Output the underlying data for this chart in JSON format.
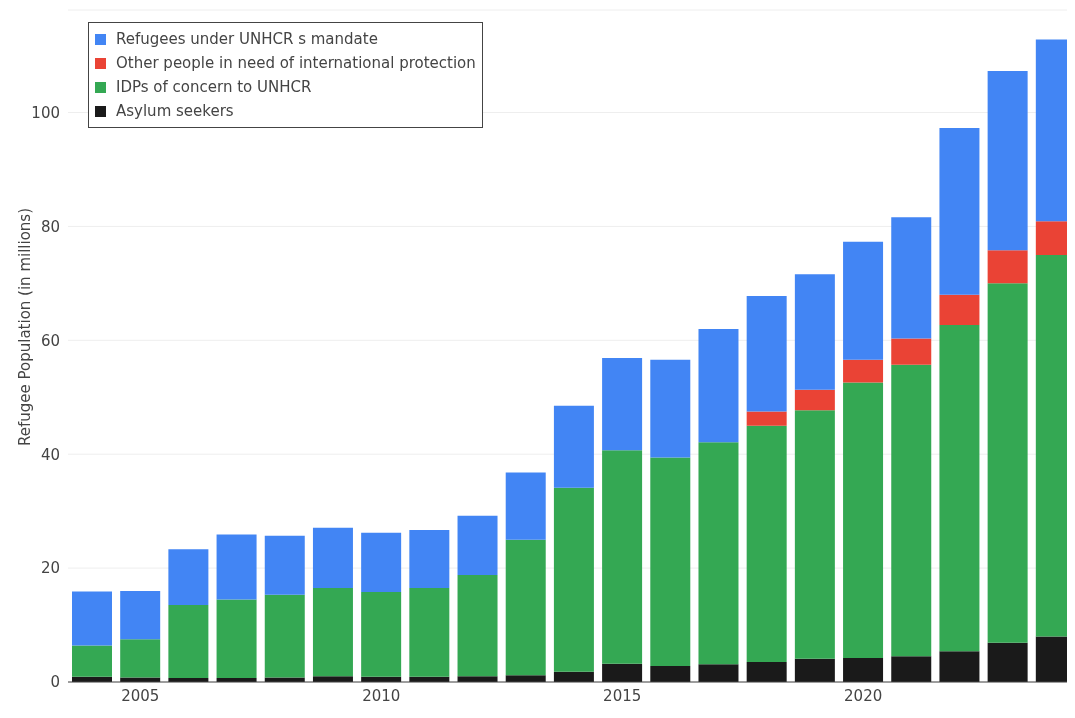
{
  "chart_data": {
    "type": "bar",
    "ylabel": "Refugee Population (in millions)",
    "stacked": true,
    "grid": "y",
    "legend": "top left",
    "x": [
      2004,
      2005,
      2006,
      2007,
      2008,
      2009,
      2010,
      2011,
      2012,
      2013,
      2014,
      2015,
      2016,
      2017,
      2018,
      2019,
      2020,
      2021,
      2022,
      2023,
      2024
    ],
    "xlim": [
      2003.5,
      2024.23
    ],
    "xticks": [
      2005,
      2010,
      2015,
      2020
    ],
    "ylim": [
      0,
      118
    ],
    "yticks": [
      0,
      20,
      40,
      60,
      80,
      100
    ],
    "series": [
      {
        "name": "Asylum seekers",
        "color": "#1a1a1a",
        "values": [
          0.9,
          0.8,
          0.7,
          0.7,
          0.8,
          1.0,
          0.9,
          0.9,
          1.0,
          1.2,
          1.8,
          3.2,
          2.8,
          3.1,
          3.5,
          4.1,
          4.2,
          4.5,
          5.4,
          6.9,
          8.0
        ]
      },
      {
        "name": "IDPs of concern to UNHCR",
        "color": "#34a853",
        "values": [
          5.5,
          6.7,
          12.8,
          13.8,
          14.5,
          15.5,
          14.9,
          15.6,
          17.8,
          23.8,
          32.3,
          37.5,
          36.6,
          39.0,
          41.5,
          43.6,
          48.4,
          51.2,
          57.3,
          63.1,
          67.0
        ]
      },
      {
        "name": "Other people in need of international protection",
        "color": "#ea4335",
        "values": [
          null,
          null,
          null,
          null,
          null,
          null,
          null,
          null,
          null,
          null,
          null,
          null,
          null,
          null,
          2.5,
          3.6,
          4.0,
          4.6,
          5.3,
          5.8,
          5.9
        ]
      },
      {
        "name": "Refugees under UNHCR s mandate",
        "color": "#4285f4",
        "values": [
          9.5,
          8.5,
          9.8,
          11.4,
          10.4,
          10.6,
          10.4,
          10.2,
          10.4,
          11.8,
          14.4,
          16.2,
          17.2,
          19.9,
          20.3,
          20.3,
          20.7,
          21.3,
          29.3,
          31.5,
          31.9
        ]
      }
    ]
  }
}
